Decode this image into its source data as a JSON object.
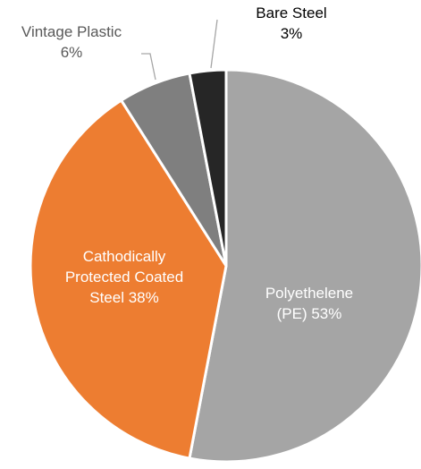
{
  "chart_data": {
    "type": "pie",
    "slices": [
      {
        "label_lines": [
          "Polyethelene",
          "(PE) 53%"
        ],
        "value": 53,
        "color": "#a5a5a5",
        "label_color": "#ffffff"
      },
      {
        "label_lines": [
          "Cathodically",
          "Protected Coated",
          "Steel 38%"
        ],
        "value": 38,
        "color": "#ed7d31",
        "label_color": "#ffffff"
      },
      {
        "label_lines": [
          "Vintage Plastic",
          "6%"
        ],
        "value": 6,
        "color": "#7f7f7f",
        "label_color": "#595959"
      },
      {
        "label_lines": [
          "Bare Steel",
          "3%"
        ],
        "value": 3,
        "color": "#262626",
        "label_color": "#000000"
      }
    ],
    "start_angle_deg": 0,
    "direction": "clockwise",
    "legend": "none",
    "title": ""
  }
}
